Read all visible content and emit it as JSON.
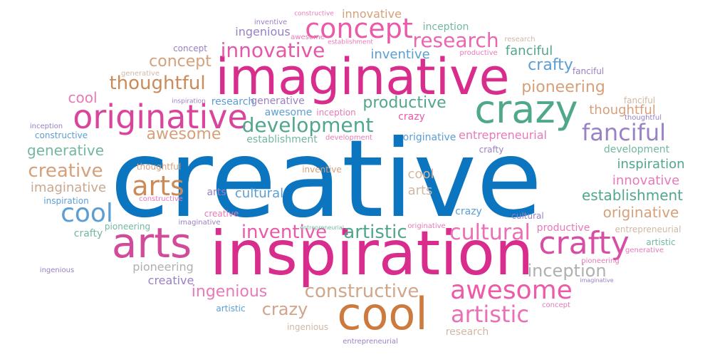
{
  "words": [
    {
      "text": "creative",
      "color": "#0b75c0"
    },
    {
      "text": "inspiration",
      "color": "#d92d8e"
    },
    {
      "text": "imaginative",
      "color": "#d92d8e"
    },
    {
      "text": "cool",
      "color": "#cc7a3e"
    },
    {
      "text": "originative",
      "color": "#d9449c"
    },
    {
      "text": "crazy",
      "color": "#4fa88b"
    },
    {
      "text": "arts",
      "color": "#d24a9a"
    },
    {
      "text": "arts",
      "color": "#cc8a58"
    },
    {
      "text": "crafty",
      "color": "#d64fa4"
    },
    {
      "text": "concept",
      "color": "#ea5aa8"
    },
    {
      "text": "innovative",
      "color": "#e558a8"
    },
    {
      "text": "research",
      "color": "#ea66b1"
    },
    {
      "text": "awesome",
      "color": "#ec5aa8"
    },
    {
      "text": "artistic",
      "color": "#ea6fb4"
    },
    {
      "text": "development",
      "color": "#52a68e"
    },
    {
      "text": "fanciful",
      "color": "#9a80c4"
    },
    {
      "text": "cultural",
      "color": "#ec6fb4"
    },
    {
      "text": "inventive",
      "color": "#ea5aa8"
    },
    {
      "text": "artistic",
      "color": "#52a68e"
    },
    {
      "text": "constructive",
      "color": "#d0a78a"
    },
    {
      "text": "cool",
      "color": "#5b9ed4"
    },
    {
      "text": "thoughtful",
      "color": "#cc8a58"
    },
    {
      "text": "awesome",
      "color": "#d6a07a"
    },
    {
      "text": "inception",
      "color": "#b0b0b0"
    },
    {
      "text": "crazy",
      "color": "#d2a58a"
    },
    {
      "text": "ingenious",
      "color": "#e77ab8"
    },
    {
      "text": "pioneering",
      "color": "#d6a07a"
    },
    {
      "text": "productive",
      "color": "#52a68e"
    },
    {
      "text": "creative",
      "color": "#d6a07a"
    },
    {
      "text": "concept",
      "color": "#d6a07a"
    },
    {
      "text": "cool",
      "color": "#e77ab8"
    },
    {
      "text": "generative",
      "color": "#74b7a0"
    },
    {
      "text": "imaginative",
      "color": "#c8a890"
    },
    {
      "text": "establishment",
      "color": "#52a68e"
    },
    {
      "text": "originative",
      "color": "#d6a07a"
    },
    {
      "text": "inspiration",
      "color": "#52a68e"
    },
    {
      "text": "innovative",
      "color": "#e77ab8"
    },
    {
      "text": "thoughtful",
      "color": "#d6a07a"
    },
    {
      "text": "pioneering",
      "color": "#b0b0b0"
    },
    {
      "text": "crafty",
      "color": "#5b9ed4"
    },
    {
      "text": "fanciful",
      "color": "#52a68e"
    },
    {
      "text": "entrepreneurial",
      "color": "#e77ab8"
    },
    {
      "text": "inventive",
      "color": "#5b9ed4"
    },
    {
      "text": "cultural",
      "color": "#5b9ed4"
    },
    {
      "text": "ingenious",
      "color": "#9a80c4"
    },
    {
      "text": "innovative",
      "color": "#d6a07a"
    },
    {
      "text": "inception",
      "color": "#74b7a0"
    },
    {
      "text": "awesome",
      "color": "#5b9ed4"
    },
    {
      "text": "crazy",
      "color": "#ea5aa8"
    },
    {
      "text": "generative",
      "color": "#9a80c4"
    },
    {
      "text": "research",
      "color": "#5b9ed4"
    },
    {
      "text": "establishment",
      "color": "#74b7a0"
    },
    {
      "text": "development",
      "color": "#74b7a0"
    },
    {
      "text": "originative",
      "color": "#5b9ed4"
    },
    {
      "text": "cool",
      "color": "#d0b8a5"
    },
    {
      "text": "arts",
      "color": "#d0b8a5"
    },
    {
      "text": "arts",
      "color": "#9a80c4"
    },
    {
      "text": "crafty",
      "color": "#74b7a0"
    },
    {
      "text": "crazy",
      "color": "#5b9ed4"
    },
    {
      "text": "pioneering",
      "color": "#74b7a0"
    },
    {
      "text": "creative",
      "color": "#9a80c4"
    },
    {
      "text": "artistic",
      "color": "#5b9ed4"
    },
    {
      "text": "ingenious",
      "color": "#d0b8a5"
    },
    {
      "text": "research",
      "color": "#d0b8a5"
    },
    {
      "text": "entrepreneurial",
      "color": "#9a80c4"
    },
    {
      "text": "inventive",
      "color": "#d6a07a"
    },
    {
      "text": "inception",
      "color": "#e77ab8"
    },
    {
      "text": "constructive",
      "color": "#5b9ed4"
    },
    {
      "text": "generative",
      "color": "#d0b8a5"
    },
    {
      "text": "imaginative",
      "color": "#9a80c4"
    },
    {
      "text": "inspiration",
      "color": "#5b9ed4"
    },
    {
      "text": "thoughtful",
      "color": "#d6a07a"
    },
    {
      "text": "constructive",
      "color": "#e77ab8"
    },
    {
      "text": "creative",
      "color": "#e77ab8"
    },
    {
      "text": "cultural",
      "color": "#9a80c4"
    },
    {
      "text": "productive",
      "color": "#e77ab8"
    },
    {
      "text": "entrepreneurial",
      "color": "#d0b8a5"
    },
    {
      "text": "generative",
      "color": "#e77ab8"
    },
    {
      "text": "artistic",
      "color": "#74b7a0"
    },
    {
      "text": "pioneering",
      "color": "#e77ab8"
    },
    {
      "text": "concept",
      "color": "#9a80c4"
    },
    {
      "text": "ingenious",
      "color": "#9a80c4"
    },
    {
      "text": "productive",
      "color": "#e77ab8"
    },
    {
      "text": "fanciful",
      "color": "#9a80c4"
    },
    {
      "text": "fanciful",
      "color": "#d0b8a5"
    },
    {
      "text": "imaginative",
      "color": "#9a80c4"
    },
    {
      "text": "development",
      "color": "#e77ab8"
    },
    {
      "text": "inventive",
      "color": "#9a80c4"
    },
    {
      "text": "constructive",
      "color": "#e77ab8"
    },
    {
      "text": "awesome",
      "color": "#e77ab8"
    },
    {
      "text": "research",
      "color": "#d0b8a5"
    },
    {
      "text": "inception",
      "color": "#9a80c4"
    },
    {
      "text": "establishment",
      "color": "#e77ab8"
    },
    {
      "text": "crafty",
      "color": "#9a80c4"
    },
    {
      "text": "originative",
      "color": "#e77ab8"
    },
    {
      "text": "thoughtful",
      "color": "#9a80c4"
    },
    {
      "text": "concept",
      "color": "#e77ab8"
    },
    {
      "text": "inspiration",
      "color": "#9a80c4"
    },
    {
      "text": "entrepreneurial",
      "color": "#74b7a0"
    }
  ]
}
